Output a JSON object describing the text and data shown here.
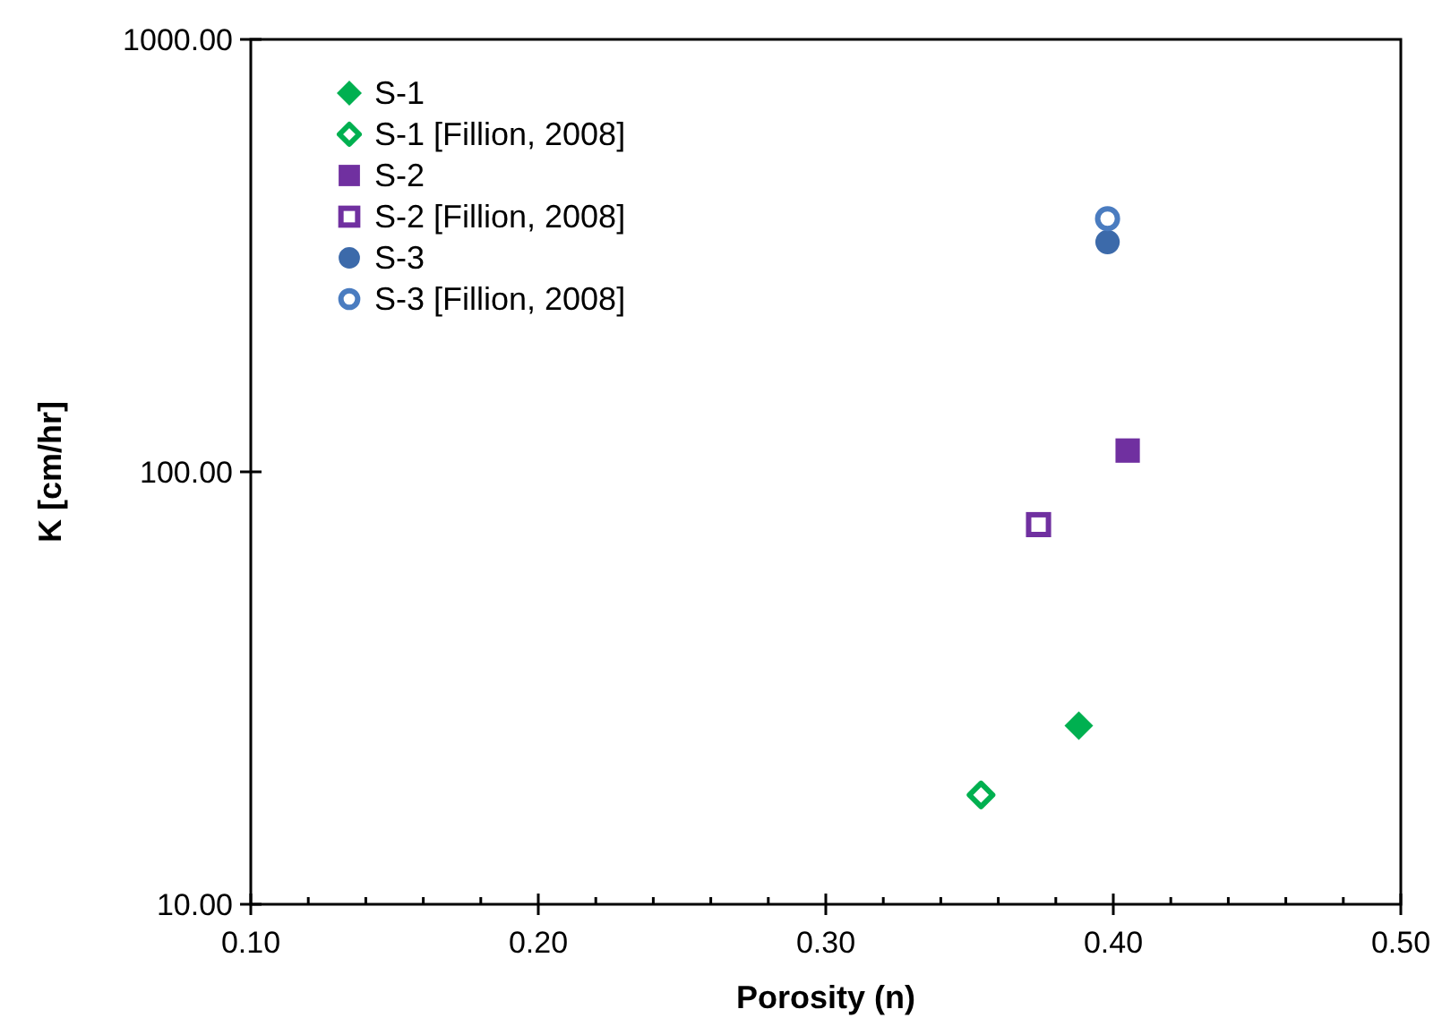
{
  "chart_data": {
    "type": "scatter",
    "xlabel": "Porosity (n)",
    "ylabel": "K [cm/hr]",
    "log": "y",
    "grid": false,
    "legend": "top left",
    "xlim": [
      0.1,
      0.5
    ],
    "ylim": [
      10,
      1000
    ],
    "xticks": [
      {
        "value": 0.1,
        "label": "0.10"
      },
      {
        "value": 0.12,
        "label": null
      },
      {
        "value": 0.14,
        "label": null
      },
      {
        "value": 0.16,
        "label": null
      },
      {
        "value": 0.18,
        "label": null
      },
      {
        "value": 0.2,
        "label": "0.20"
      },
      {
        "value": 0.22,
        "label": null
      },
      {
        "value": 0.24,
        "label": null
      },
      {
        "value": 0.26,
        "label": null
      },
      {
        "value": 0.28,
        "label": null
      },
      {
        "value": 0.3,
        "label": "0.30"
      },
      {
        "value": 0.32,
        "label": null
      },
      {
        "value": 0.34,
        "label": null
      },
      {
        "value": 0.36,
        "label": null
      },
      {
        "value": 0.38,
        "label": null
      },
      {
        "value": 0.4,
        "label": "0.40"
      },
      {
        "value": 0.42,
        "label": null
      },
      {
        "value": 0.44,
        "label": null
      },
      {
        "value": 0.46,
        "label": null
      },
      {
        "value": 0.48,
        "label": null
      },
      {
        "value": 0.5,
        "label": "0.50"
      }
    ],
    "yticks": [
      {
        "value": 10,
        "label": "10.00"
      },
      {
        "value": 100,
        "label": "100.00"
      },
      {
        "value": 1000,
        "label": "1000.00"
      }
    ],
    "series": [
      {
        "name": "S-1",
        "color": "#00b050",
        "marker": "diamond",
        "x": [
          0.388
        ],
        "values": [
          25.9
        ]
      },
      {
        "name": "S-1 [Fillion, 2008]",
        "color": "#00b050",
        "marker": "diamond-open",
        "x": [
          0.354
        ],
        "values": [
          17.9
        ]
      },
      {
        "name": "S-2",
        "color": "#7030a0",
        "marker": "square",
        "x": [
          0.405
        ],
        "values": [
          112
        ]
      },
      {
        "name": "S-2 [Fillion, 2008]",
        "color": "#7030a0",
        "marker": "square-open",
        "x": [
          0.374
        ],
        "values": [
          75.5
        ]
      },
      {
        "name": "S-3",
        "color": "#3c6aaa",
        "marker": "circle",
        "x": [
          0.398
        ],
        "values": [
          340
        ]
      },
      {
        "name": "S-3 [Fillion, 2008]",
        "color": "#4a7cc0",
        "marker": "circle-open",
        "x": [
          0.398
        ],
        "values": [
          385
        ]
      }
    ]
  }
}
